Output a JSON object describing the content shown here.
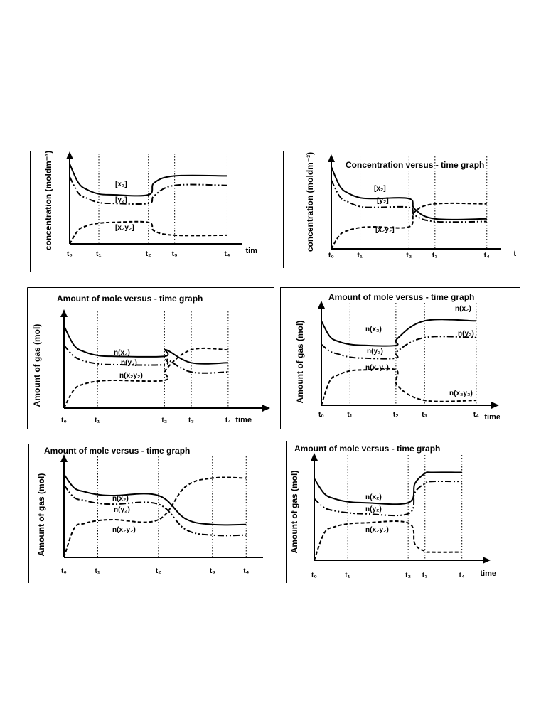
{
  "page": {
    "background": "#ffffff",
    "ink": "#000000"
  },
  "chart_data": [
    {
      "type": "line",
      "title": "",
      "ylabel": "concentration (moldm⁻³)",
      "xlabel": "tim",
      "x_ticks": [
        "t₀",
        "t₁",
        "t₂",
        "t₃",
        "t₄"
      ],
      "x_tick_values": [
        0,
        1,
        2.7,
        3.6,
        5.4
      ],
      "xlim": [
        0,
        5.9
      ],
      "ylim": [
        0,
        10
      ],
      "series": [
        {
          "name": "[x₂]",
          "style": "solid",
          "x": [
            0,
            0.3,
            0.6,
            1,
            1.5,
            2.7,
            2.9,
            3.6,
            5.4
          ],
          "y": [
            9.3,
            7.1,
            6.3,
            5.8,
            5.7,
            5.7,
            7.1,
            7.9,
            7.9
          ]
        },
        {
          "name": "[y₂]",
          "style": "dash-dot-dot",
          "x": [
            0,
            0.3,
            0.6,
            1,
            1.5,
            2.7,
            2.9,
            3.6,
            5.4
          ],
          "y": [
            7.8,
            5.9,
            5.3,
            4.8,
            4.7,
            4.7,
            5.6,
            6.8,
            6.8
          ]
        },
        {
          "name": "[x₂y₂]",
          "style": "dashed",
          "x": [
            0,
            0.3,
            0.6,
            1,
            1.5,
            2.7,
            2.9,
            3.6,
            5.4
          ],
          "y": [
            0,
            1.6,
            2.1,
            2.4,
            2.5,
            2.5,
            1.5,
            1.0,
            1.0
          ]
        }
      ]
    },
    {
      "type": "line",
      "title": "Concentration versus  - time graph",
      "ylabel": "concentration (moldm⁻³)",
      "xlabel": "t",
      "x_ticks": [
        "t₀",
        "t₁",
        "t₂",
        "t₃",
        "t₄"
      ],
      "x_tick_values": [
        0,
        1,
        2.7,
        3.6,
        5.4
      ],
      "xlim": [
        0,
        5.9
      ],
      "ylim": [
        0,
        10
      ],
      "series": [
        {
          "name": "[x₂]",
          "style": "solid",
          "x": [
            0,
            0.3,
            0.6,
            1,
            1.5,
            2.7,
            2.9,
            3.6,
            5.4
          ],
          "y": [
            9.3,
            7.1,
            6.3,
            5.8,
            5.7,
            5.7,
            4.5,
            3.4,
            3.4
          ]
        },
        {
          "name": "[y₂]",
          "style": "dash-dot-dot",
          "x": [
            0,
            0.3,
            0.6,
            1,
            1.5,
            2.7,
            2.9,
            3.6,
            5.4
          ],
          "y": [
            7.8,
            5.9,
            5.3,
            4.8,
            4.7,
            4.7,
            3.8,
            3.1,
            3.1
          ]
        },
        {
          "name": "[x₂y₂]",
          "style": "dashed",
          "x": [
            0,
            0.3,
            0.6,
            1,
            1.5,
            2.7,
            2.9,
            3.6,
            5.4
          ],
          "y": [
            0,
            1.6,
            2.1,
            2.4,
            2.5,
            2.5,
            4.2,
            5.1,
            5.1
          ]
        }
      ]
    },
    {
      "type": "line",
      "title": "Amount of mole versus  - time graph",
      "ylabel": "Amount of gas (mol)",
      "xlabel": "time",
      "x_ticks": [
        "t₀",
        "t₁",
        "t₂",
        "t₃",
        "t₄"
      ],
      "x_tick_values": [
        0,
        1,
        3,
        3.8,
        4.9
      ],
      "xlim": [
        0,
        5.9
      ],
      "ylim": [
        0,
        10
      ],
      "series": [
        {
          "name": "n(x₂)",
          "style": "solid",
          "x": [
            0,
            0.3,
            0.6,
            1,
            1.5,
            3,
            3.05,
            3.8,
            4.9
          ],
          "y": [
            8.9,
            6.8,
            6.1,
            5.7,
            5.6,
            5.6,
            6.3,
            4.9,
            4.9
          ]
        },
        {
          "name": "n(y₂)",
          "style": "dash-dot-dot",
          "x": [
            0,
            0.3,
            0.6,
            1,
            1.5,
            3,
            3.05,
            3.8,
            4.9
          ],
          "y": [
            6.8,
            5.6,
            5.1,
            4.8,
            4.7,
            4.7,
            5.3,
            3.9,
            3.9
          ]
        },
        {
          "name": "n(x₂y₂)",
          "style": "dashed",
          "x": [
            0,
            0.3,
            0.6,
            1,
            1.5,
            3,
            3.05,
            3.8,
            4.9
          ],
          "y": [
            0,
            2.0,
            2.6,
            2.9,
            3.0,
            3.0,
            4.2,
            6.3,
            6.3
          ]
        }
      ]
    },
    {
      "type": "line",
      "title": "Amount of mole versus  - time graph",
      "ylabel": "Amount of gas (mol)",
      "xlabel": "time",
      "x_ticks": [
        "t₀",
        "t₁",
        "t₂",
        "t₃",
        "t₄"
      ],
      "x_tick_values": [
        0,
        1,
        2.6,
        3.6,
        5.4
      ],
      "xlim": [
        0,
        5.9
      ],
      "ylim": [
        0,
        10
      ],
      "series": [
        {
          "name": "n(x₂)",
          "style": "solid",
          "x": [
            0,
            0.3,
            0.6,
            1,
            1.5,
            2.6,
            2.65,
            3.6,
            5.4
          ],
          "y": [
            8.6,
            7.0,
            6.5,
            6.2,
            6.1,
            6.1,
            6.8,
            8.6,
            8.6
          ]
        },
        {
          "name": "n(y₂)",
          "style": "dash-dot-dot",
          "x": [
            0,
            0.3,
            0.6,
            1,
            1.5,
            2.6,
            2.65,
            3.6,
            5.4
          ],
          "y": [
            6.2,
            5.5,
            5.2,
            4.9,
            4.8,
            4.8,
            5.5,
            6.9,
            6.9
          ]
        },
        {
          "name": "n(x₂y₂)",
          "style": "dashed",
          "x": [
            0,
            0.3,
            0.6,
            1,
            1.5,
            2.6,
            2.65,
            3.6,
            5.4
          ],
          "y": [
            0,
            2.5,
            3.1,
            3.5,
            3.6,
            3.6,
            2.0,
            0.5,
            0.5
          ]
        }
      ],
      "series_labels": [
        "n(x₂)",
        "n(y₂)",
        "n(x₂y₂)",
        "n(x₂)",
        "n(y₂)",
        "n(x₂y₂)"
      ]
    },
    {
      "type": "line",
      "title": "Amount of mole versus  - time graph",
      "ylabel": "Amount of gas (mol)",
      "xlabel": "",
      "x_ticks": [
        "t₀",
        "t₁",
        "t₂",
        "t₃",
        "t₄"
      ],
      "x_tick_values": [
        0,
        1,
        2.8,
        4.4,
        5.4
      ],
      "xlim": [
        0,
        5.9
      ],
      "ylim": [
        0,
        10
      ],
      "series": [
        {
          "name": "n(x₂)",
          "style": "solid",
          "x": [
            0,
            0.3,
            0.6,
            1,
            1.5,
            2.8,
            3.6,
            4.4,
            5.4
          ],
          "y": [
            8.6,
            7.2,
            6.8,
            6.5,
            6.4,
            6.4,
            4.0,
            3.4,
            3.4
          ]
        },
        {
          "name": "n(y₂)",
          "style": "dash-dot-dot",
          "x": [
            0,
            0.3,
            0.6,
            1,
            1.5,
            2.8,
            3.6,
            4.4,
            5.4
          ],
          "y": [
            7.5,
            6.2,
            5.9,
            5.6,
            5.5,
            5.5,
            2.9,
            2.3,
            2.3
          ]
        },
        {
          "name": "n(x₂y₂)",
          "style": "dashed",
          "x": [
            0,
            0.3,
            0.6,
            1,
            1.5,
            2.8,
            3.6,
            4.4,
            5.4
          ],
          "y": [
            0,
            3.0,
            3.5,
            3.8,
            3.9,
            3.9,
            7.3,
            8.2,
            8.2
          ]
        }
      ]
    },
    {
      "type": "line",
      "title": "Amount of mole versus  - time graph",
      "ylabel": "Amount of gas (mol)",
      "xlabel": "time",
      "x_ticks": [
        "t₀",
        "t₁",
        "t₂",
        "t₃",
        "t₄"
      ],
      "x_tick_values": [
        0,
        1,
        2.8,
        3.3,
        4.4
      ],
      "xlim": [
        0,
        5.0
      ],
      "ylim": [
        0,
        10
      ],
      "series": [
        {
          "name": "n(x₂)",
          "style": "solid",
          "x": [
            0,
            0.3,
            0.6,
            1,
            1.5,
            2.8,
            3.0,
            3.3,
            3.5,
            4.4
          ],
          "y": [
            8.1,
            6.6,
            6.1,
            5.8,
            5.7,
            5.7,
            7.6,
            8.6,
            8.7,
            8.7
          ]
        },
        {
          "name": "n(y₂)",
          "style": "dash-dot-dot",
          "x": [
            0,
            0.3,
            0.6,
            1,
            1.5,
            2.8,
            3.0,
            3.3,
            3.5,
            4.4
          ],
          "y": [
            6.1,
            5.2,
            4.9,
            4.7,
            4.6,
            4.6,
            6.7,
            7.6,
            7.8,
            7.8
          ]
        },
        {
          "name": "n(x₂y₂)",
          "style": "dashed",
          "x": [
            0,
            0.3,
            0.6,
            1,
            1.5,
            2.8,
            3.0,
            3.3,
            3.5,
            4.4
          ],
          "y": [
            0,
            2.7,
            3.3,
            3.6,
            3.7,
            3.7,
            1.6,
            0.9,
            0.8,
            0.8
          ]
        }
      ]
    }
  ]
}
